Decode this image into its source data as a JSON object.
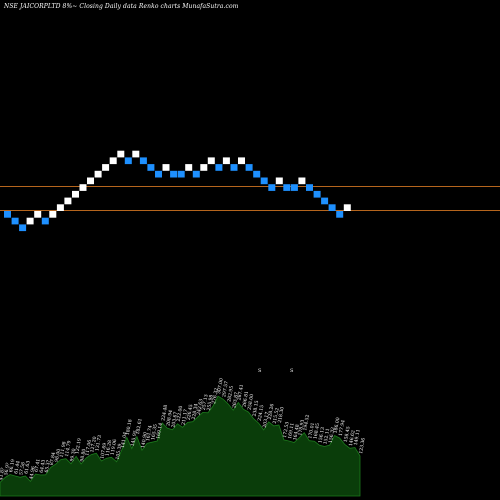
{
  "header": {
    "title": "NSE JAICORPLTD 8%~ Closing Daily data Renko charts MunafaSutra.com"
  },
  "colors": {
    "background": "#000000",
    "brick_up": "#ffffff",
    "brick_down": "#1e90ff",
    "level_line": "#b5651d",
    "volume_fill": "#0a3d0a",
    "volume_stroke": "#1c7a1c",
    "volume_label": "#ffffff"
  },
  "chart_data": {
    "type": "renko",
    "brick_sequence": [
      "down",
      "down",
      "down",
      "up",
      "up",
      "down",
      "up",
      "up",
      "up",
      "up",
      "up",
      "up",
      "up",
      "up",
      "up",
      "up",
      "down",
      "up",
      "down",
      "down",
      "down",
      "up",
      "down",
      "down",
      "up",
      "down",
      "up",
      "up",
      "down",
      "up",
      "down",
      "up",
      "down",
      "down",
      "down",
      "down",
      "up",
      "down",
      "down",
      "up",
      "down",
      "down",
      "down",
      "down",
      "down",
      "up"
    ],
    "brick_levels": [
      7,
      6,
      5,
      6,
      7,
      6,
      7,
      8,
      9,
      10,
      11,
      12,
      13,
      14,
      15,
      16,
      15,
      16,
      15,
      14,
      13,
      14,
      13,
      13,
      14,
      13,
      14,
      15,
      14,
      15,
      14,
      15,
      14,
      13,
      12,
      11,
      12,
      11,
      11,
      12,
      11,
      10,
      9,
      8,
      7,
      8
    ],
    "reference_lines": [
      "upper",
      "lower"
    ],
    "volume_labels": [
      "41.8?",
      "56.9?",
      "66.19",
      "61.44",
      "57.58",
      "61.63",
      "44.96",
      "67.41",
      "64.43",
      "65.3?",
      "87.84",
      "98.00",
      "111.98",
      "114.79",
      "99.30",
      "122.19",
      "98.80",
      "117.06",
      "127.20",
      "131.73",
      "107.69",
      "116.28",
      "119.06",
      "105.39",
      "141.04",
      "180.18",
      "145.95",
      "182.61",
      "140.90",
      "161.74",
      "165.35",
      "169.14",
      "224.48",
      "208.94",
      "203.67",
      "222.00",
      "211.17",
      "226.45",
      "228.34",
      "242.63",
      "257.13",
      "255.98",
      "276.32",
      "307.00",
      "297.57",
      "282.95",
      "263.87",
      "287.41",
      "266.81",
      "258.00",
      "238.15",
      "224.15",
      "203.17",
      "228.26",
      "215.52",
      "218.30",
      "172.53",
      "169.11",
      "164.48",
      "178.93",
      "194.52",
      "170.01",
      "168.45",
      "156.13",
      "152.11",
      "156.32",
      "186.00",
      "177.94",
      "158.45",
      "146.62",
      "149.11",
      "123.36"
    ],
    "volume_peaks": [
      "S",
      "S"
    ]
  }
}
